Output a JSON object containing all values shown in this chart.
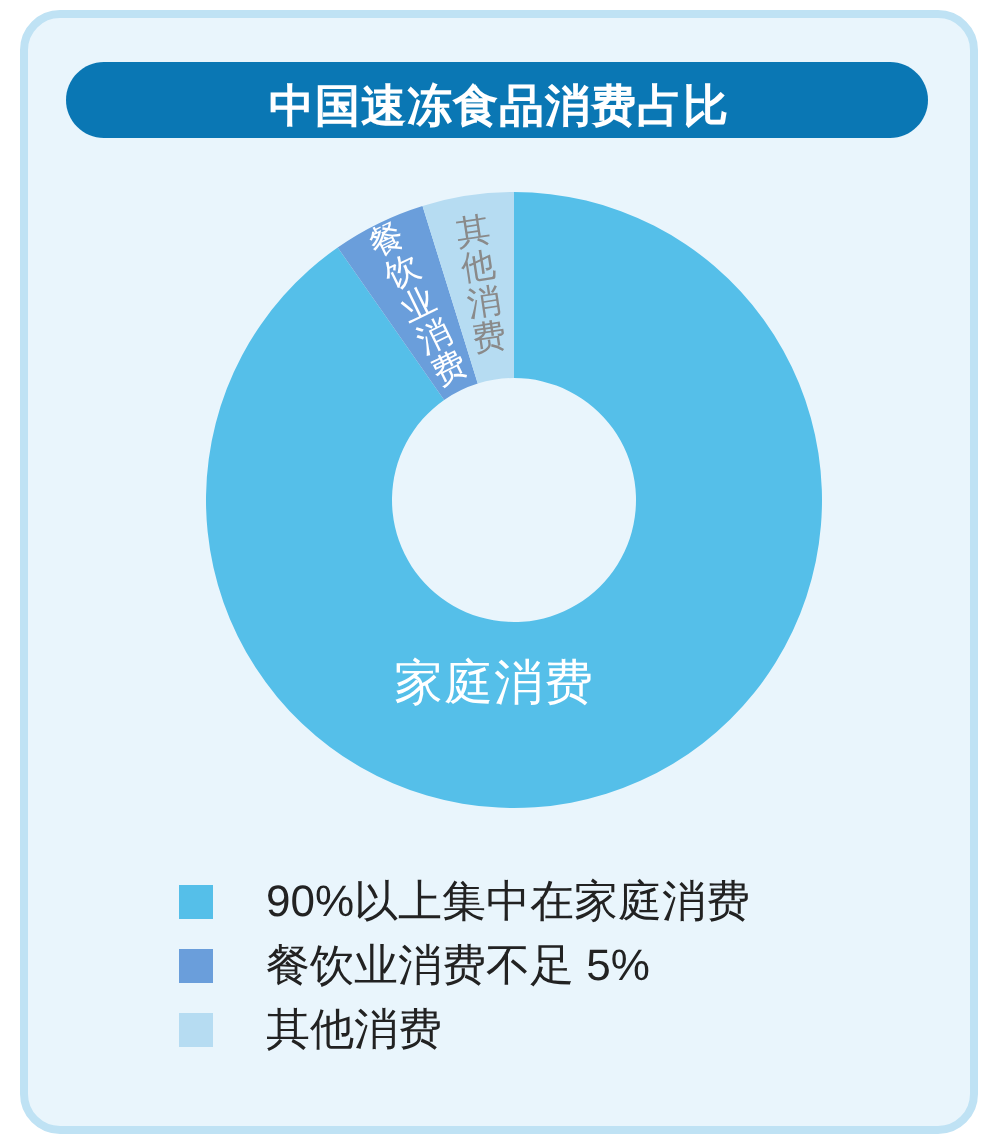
{
  "chart_data": {
    "type": "donut",
    "title": "中国速冻食品消费占比",
    "categories": [
      "90%以上集中在家庭消费",
      "餐饮业消费不足 5%",
      "其他消费"
    ],
    "values": [
      90.3,
      4.9,
      4.8
    ],
    "colors": [
      "#55bfe9",
      "#6a9edb",
      "#b6dcf2"
    ],
    "legend": "bottom",
    "annotations": [
      {
        "text": "家庭消费",
        "x": "90%以上集中在家庭消费"
      },
      {
        "text": "餐饮业消费",
        "x": "餐饮业消费不足 5%"
      },
      {
        "text": "其他消费",
        "x": "其他消费"
      }
    ]
  }
}
